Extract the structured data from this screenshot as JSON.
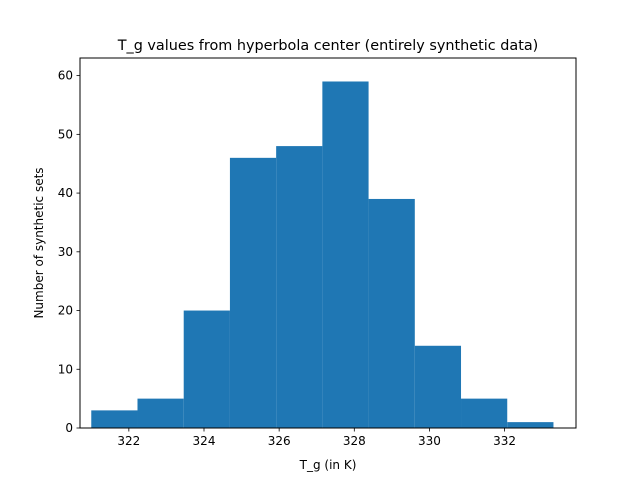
{
  "chart_data": {
    "type": "bar",
    "title": "T_g values from hyperbola center (entirely synthetic data)",
    "xlabel": "T_g (in K)",
    "ylabel": "Number of synthetic sets",
    "xlim": [
      320.7,
      333.9
    ],
    "ylim": [
      0,
      63
    ],
    "xticks": [
      322,
      324,
      326,
      328,
      330,
      332
    ],
    "yticks": [
      0,
      10,
      20,
      30,
      40,
      50,
      60
    ],
    "bin_edges": [
      321.0,
      322.23,
      323.46,
      324.69,
      325.92,
      327.15,
      328.38,
      329.61,
      330.84,
      332.07,
      333.3
    ],
    "values": [
      3,
      5,
      20,
      46,
      48,
      59,
      39,
      14,
      5,
      1
    ],
    "bar_color": "#1f77b4",
    "grid": false
  }
}
